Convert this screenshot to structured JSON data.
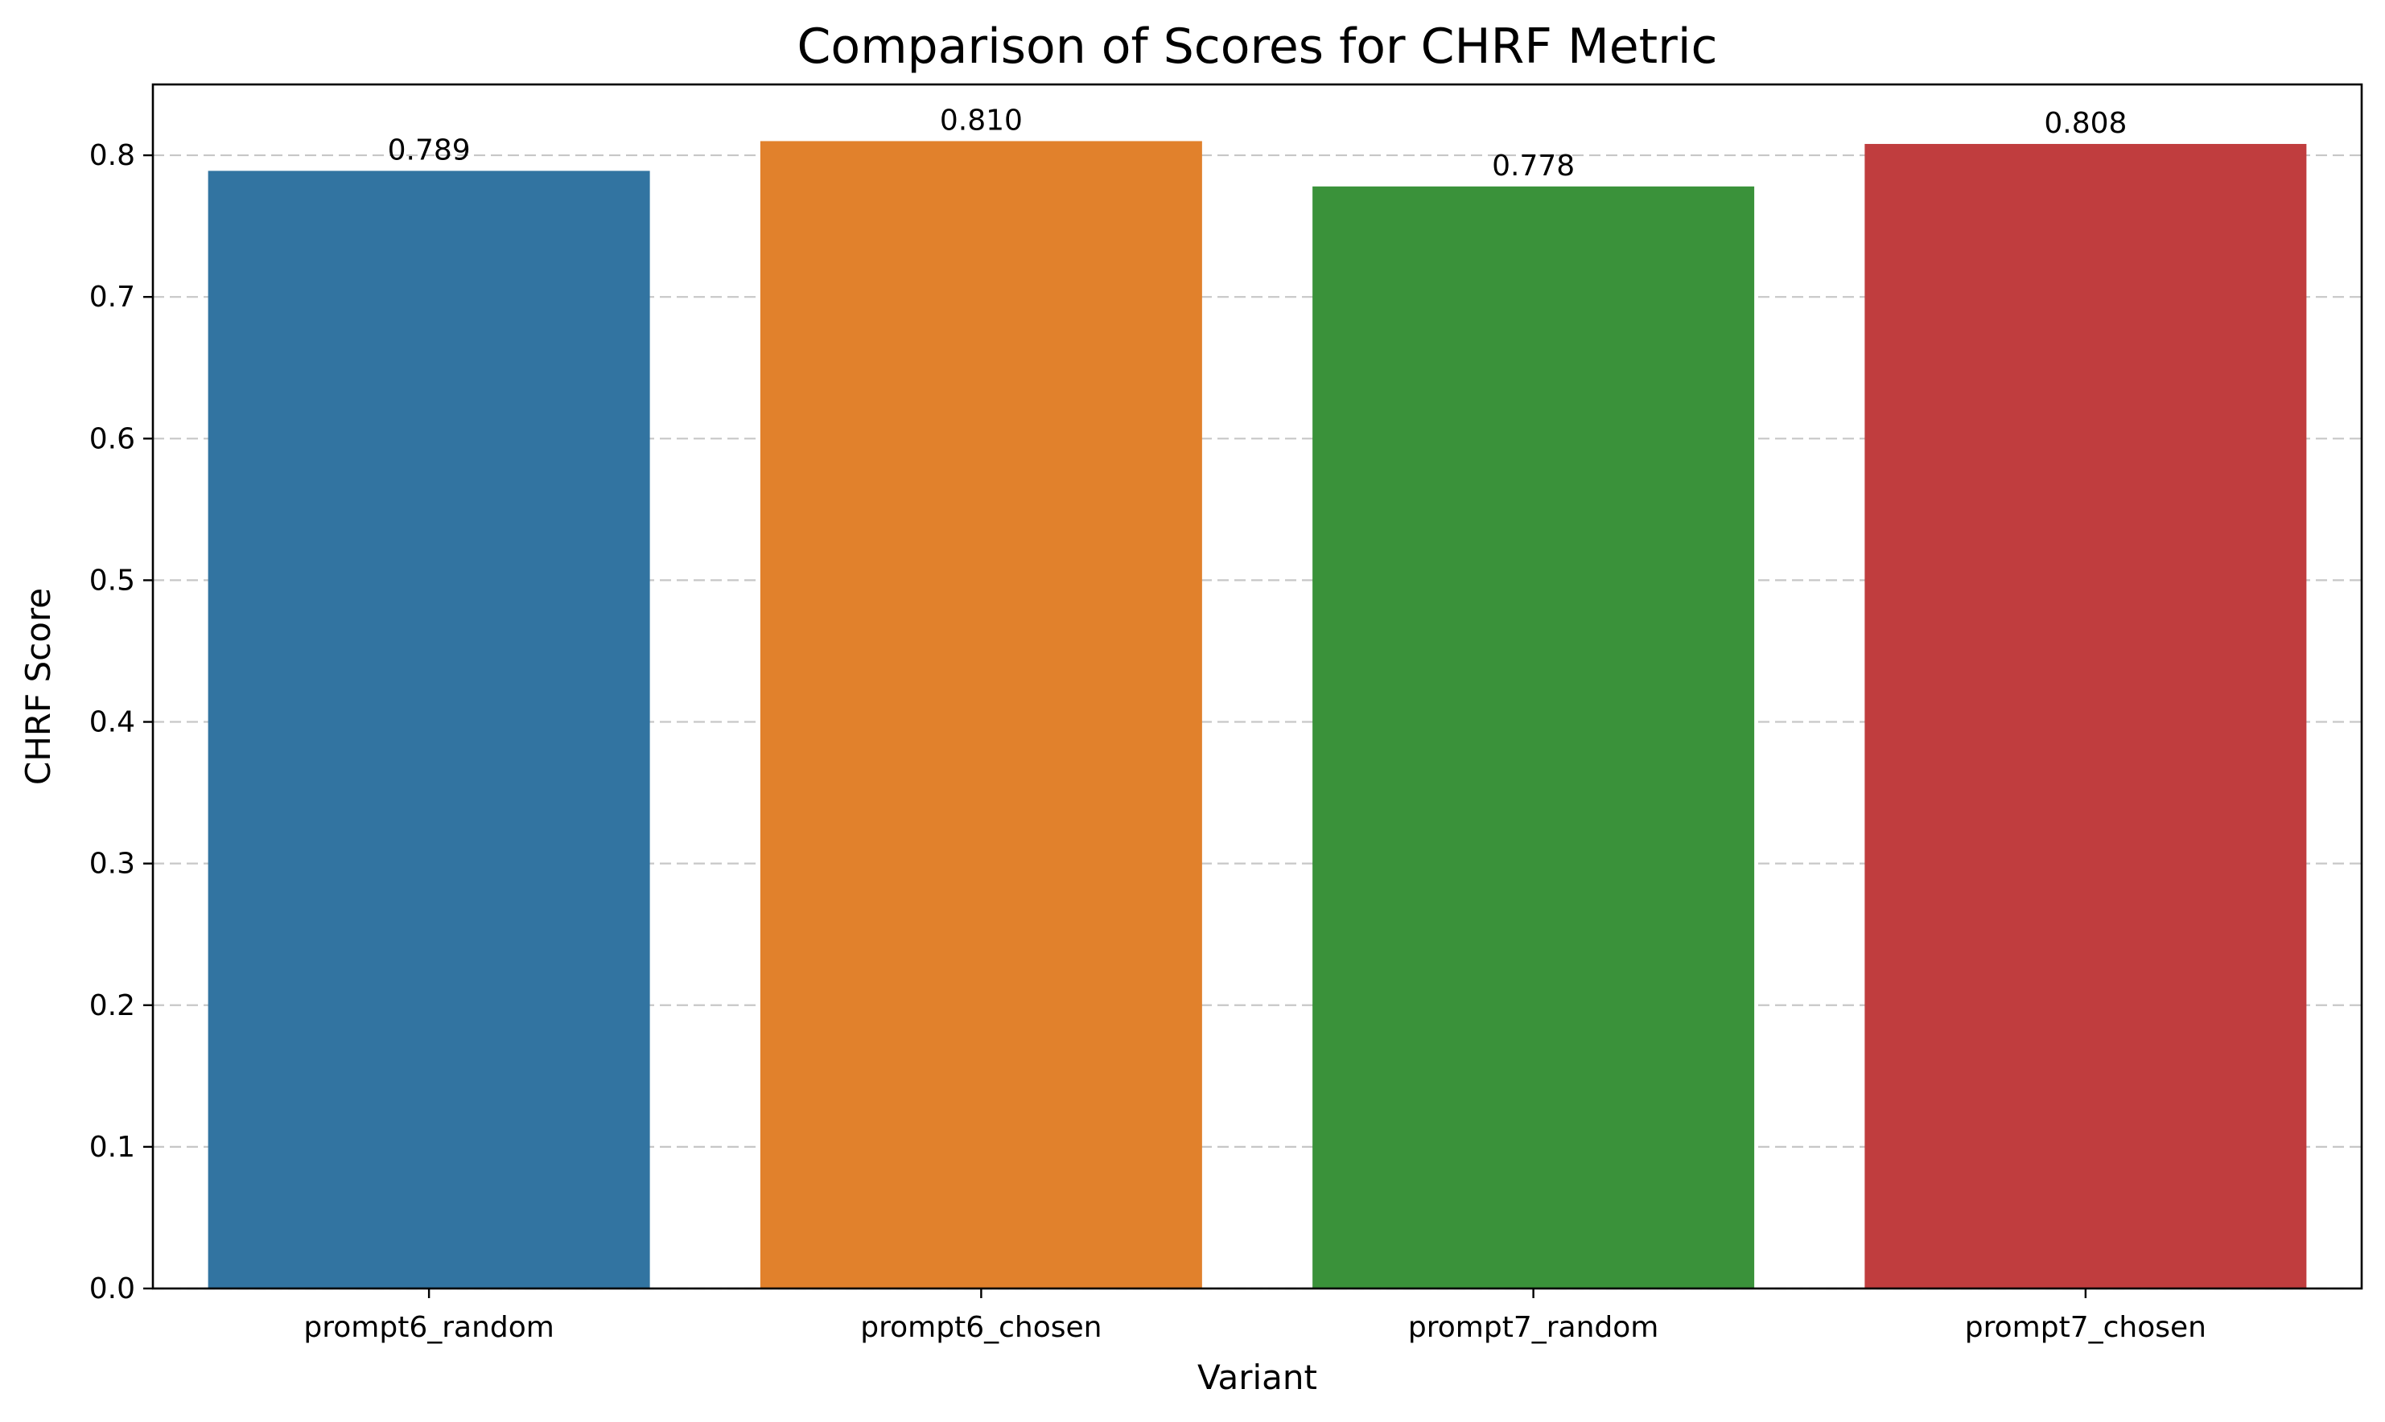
{
  "chart_data": {
    "type": "bar",
    "title": "Comparison of Scores for CHRF Metric",
    "xlabel": "Variant",
    "ylabel": "CHRF Score",
    "categories": [
      "prompt6_random",
      "prompt6_chosen",
      "prompt7_random",
      "prompt7_chosen"
    ],
    "values": [
      0.789,
      0.81,
      0.778,
      0.808
    ],
    "data_labels": [
      "0.789",
      "0.810",
      "0.778",
      "0.808"
    ],
    "colors": [
      "#3274a1",
      "#e1812c",
      "#3a923a",
      "#c03d3e"
    ],
    "ylim": [
      0,
      0.85
    ],
    "yticks": [
      0.0,
      0.1,
      0.2,
      0.3,
      0.4,
      0.5,
      0.6,
      0.7,
      0.8
    ],
    "ytick_labels": [
      "0.0",
      "0.1",
      "0.2",
      "0.3",
      "0.4",
      "0.5",
      "0.6",
      "0.7",
      "0.8"
    ],
    "grid": "y-axis dashed",
    "legend": "none"
  }
}
